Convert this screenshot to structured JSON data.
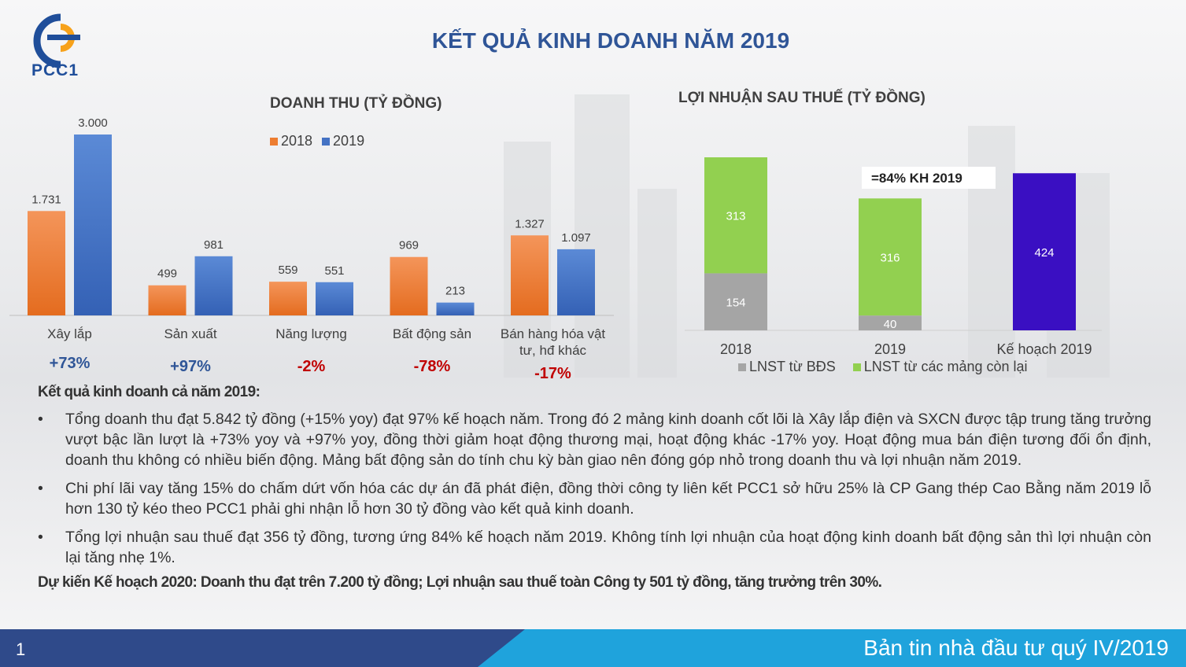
{
  "brand": {
    "logo_text": "PCC1"
  },
  "page_title": "KẾT QUẢ KINH DOANH NĂM 2019",
  "chart_data": [
    {
      "type": "bar",
      "title": "DOANH THU (TỶ ĐỒNG)",
      "categories": [
        "Xây lắp",
        "Sản xuất",
        "Năng lượng",
        "Bất động sản",
        "Bán hàng hóa vật tư, hđ khác"
      ],
      "series": [
        {
          "name": "2018",
          "values": [
            1731,
            499,
            559,
            969,
            1327
          ],
          "labels": [
            "1.731",
            "499",
            "559",
            "969",
            "1.327"
          ],
          "color": "#ed7d31"
        },
        {
          "name": "2019",
          "values": [
            3000,
            981,
            551,
            213,
            1097
          ],
          "labels": [
            "3.000",
            "981",
            "551",
            "213",
            "1.097"
          ],
          "color": "#4472c4"
        }
      ],
      "growth": [
        "+73%",
        "+97%",
        "-2%",
        "-78%",
        "-17%"
      ],
      "growth_colors": [
        "#2f5597",
        "#2f5597",
        "#c00000",
        "#c00000",
        "#c00000"
      ],
      "ylim": [
        0,
        3000
      ],
      "legend": "top"
    },
    {
      "type": "bar",
      "stacked": true,
      "title": "LỢI NHUẬN SAU THUẾ (TỶ ĐỒNG)",
      "categories": [
        "2018",
        "2019",
        "Kế hoạch 2019"
      ],
      "series": [
        {
          "name": "LNST từ BĐS",
          "values": [
            154,
            40,
            0
          ],
          "labels": [
            "154",
            "40",
            ""
          ],
          "color": "#a5a5a5"
        },
        {
          "name": "LNST từ các mảng còn lại",
          "values": [
            313,
            316,
            0
          ],
          "labels": [
            "313",
            "316",
            ""
          ],
          "color": "#92d050"
        },
        {
          "name": "",
          "values": [
            0,
            0,
            424
          ],
          "labels": [
            "",
            "",
            "424"
          ],
          "color": "#3a0fc2"
        }
      ],
      "annotation": "=84% KH 2019",
      "ylim": [
        0,
        467
      ],
      "legend": "bottom"
    }
  ],
  "summary": {
    "heading": "Kết quả kinh doanh cả năm 2019:",
    "bullet": "•",
    "items": [
      "Tổng doanh thu đạt 5.842 tỷ đồng (+15% yoy) đạt 97% kế hoạch năm. Trong đó 2 mảng kinh doanh cốt lõi là Xây lắp điện và SXCN được tập trung tăng trưởng vượt bậc lần lượt là +73% yoy và +97% yoy, đồng thời giảm hoạt động thương mại, hoạt động khác -17% yoy. Hoạt động mua bán điện tương đối ổn định, doanh thu không có nhiều biến động. Mảng bất động sản do tính chu kỳ bàn giao nên đóng góp nhỏ trong doanh thu và lợi nhuận năm 2019.",
      "Chi phí lãi vay tăng 15% do chấm dứt vốn hóa các dự án đã phát điện, đồng thời công ty liên kết PCC1 sở hữu 25% là CP Gang thép Cao Bằng năm 2019 lỗ hơn 130 tỷ kéo theo PCC1 phải ghi nhận lỗ hơn 30 tỷ đồng vào kết quả kinh doanh.",
      "Tổng lợi nhuận sau thuế đạt 356 tỷ đồng, tương ứng 84% kế hoạch năm 2019. Không tính lợi nhuận của hoạt động kinh doanh bất động sản thì lợi nhuận còn lại tăng nhẹ 1%."
    ],
    "plan": "Dự kiến Kế hoạch 2020: Doanh thu đạt trên 7.200 tỷ đồng; Lợi nhuận sau thuế toàn Công ty 501 tỷ đồng, tăng trưởng trên 30%."
  },
  "footer": {
    "page_number": "1",
    "bulletin": "Bản tin nhà đầu tư quý IV/2019",
    "colors": {
      "dark": "#2f4a8a",
      "light": "#1fa3dc"
    }
  }
}
